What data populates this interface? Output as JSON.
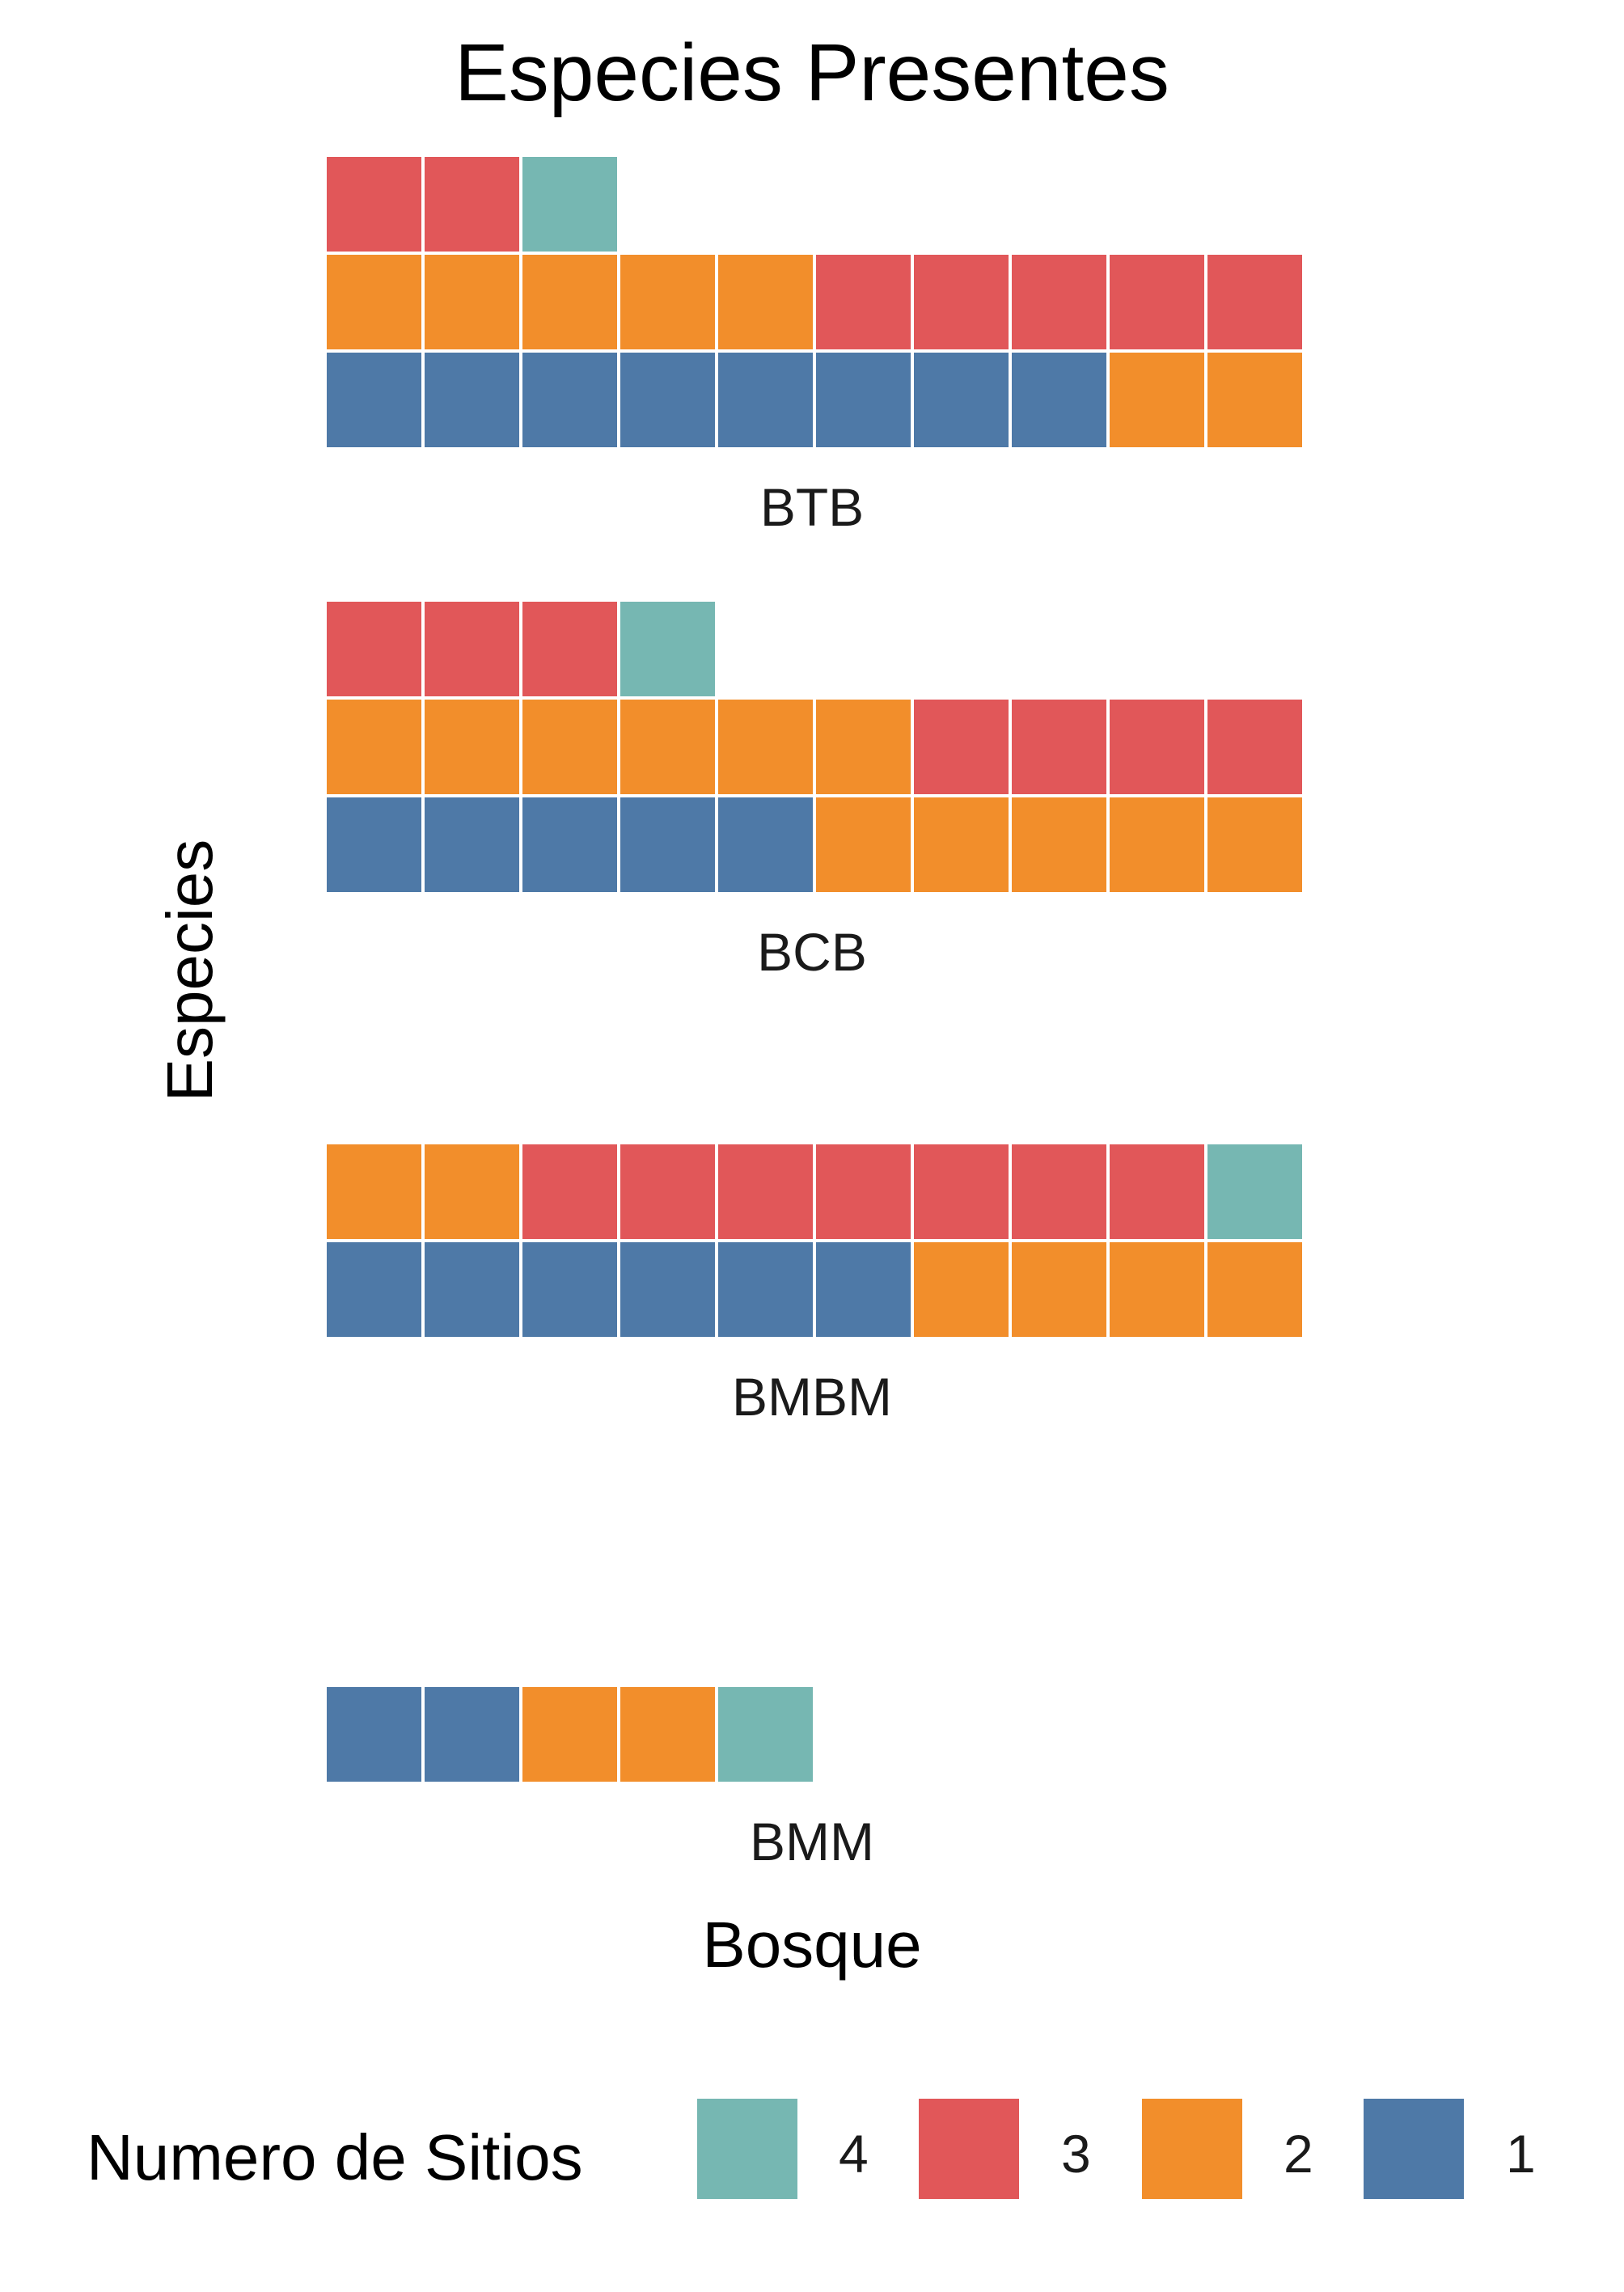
{
  "chart_data": {
    "type": "waffle",
    "title": "Especies Presentes",
    "xlabel": "Bosque",
    "ylabel": "Especies",
    "unit_per_square": 1,
    "columns": 10,
    "fill_order": [
      "1",
      "2",
      "3",
      "4"
    ],
    "panels": [
      {
        "label": "BTB",
        "counts": {
          "1": 8,
          "2": 7,
          "3": 7,
          "4": 1
        }
      },
      {
        "label": "BCB",
        "counts": {
          "1": 5,
          "2": 11,
          "3": 7,
          "4": 1
        }
      },
      {
        "label": "BMBM",
        "counts": {
          "1": 6,
          "2": 6,
          "3": 7,
          "4": 1
        }
      },
      {
        "label": "BMM",
        "counts": {
          "1": 2,
          "2": 2,
          "3": 0,
          "4": 1
        }
      }
    ],
    "legend": {
      "title": "Numero de Sitios",
      "position": "bottom",
      "items": [
        {
          "label": "4",
          "color": "#76B7B2"
        },
        {
          "label": "3",
          "color": "#E15759"
        },
        {
          "label": "2",
          "color": "#F28E2B"
        },
        {
          "label": "1",
          "color": "#4E79A7"
        }
      ]
    },
    "colors": {
      "1": "#4E79A7",
      "2": "#F28E2B",
      "3": "#E15759",
      "4": "#76B7B2"
    },
    "grid": false
  }
}
